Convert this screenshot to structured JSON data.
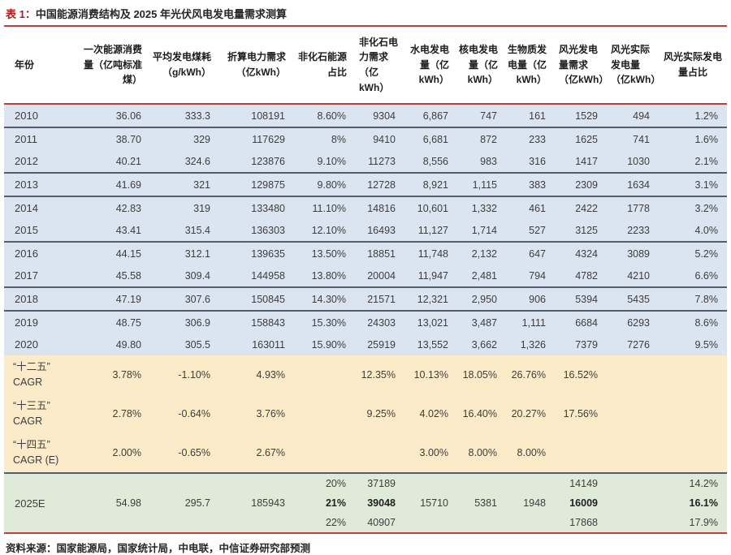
{
  "title": {
    "prefix": "表 1：",
    "text": "中国能源消费结构及 2025 年光伏风电发电量需求测算"
  },
  "colors": {
    "accent_red": "#b8413c",
    "title_red": "#ad1a1f",
    "row_blue": "#dbe5f1",
    "row_tan": "#fcebc8",
    "row_green": "#dfead9",
    "divider_gray": "#525f6b"
  },
  "table": {
    "columns": [
      "年份",
      "一次能源消费量（亿吨标准煤）",
      "平均发电煤耗（g/kWh）",
      "折算电力需求（亿kWh）",
      "非化石能源占比",
      "非化石电力需求（亿kWh）",
      "水电发电量（亿kWh）",
      "核电发电量（亿kWh）",
      "生物质发电量（亿kWh）",
      "风光发电量需求（亿kWh）",
      "风光实际发电量（亿kWh）",
      "风光实际发电量占比"
    ],
    "rows": [
      [
        "2010",
        "36.06",
        "333.3",
        "108191",
        "8.60%",
        "9304",
        "6,867",
        "747",
        "161",
        "1529",
        "494",
        "1.2%"
      ],
      [
        "2011",
        "38.70",
        "329",
        "117629",
        "8%",
        "9410",
        "6,681",
        "872",
        "233",
        "1625",
        "741",
        "1.6%"
      ],
      [
        "2012",
        "40.21",
        "324.6",
        "123876",
        "9.10%",
        "11273",
        "8,556",
        "983",
        "316",
        "1417",
        "1030",
        "2.1%"
      ],
      [
        "2013",
        "41.69",
        "321",
        "129875",
        "9.80%",
        "12728",
        "8,921",
        "1,115",
        "383",
        "2309",
        "1634",
        "3.1%"
      ],
      [
        "2014",
        "42.83",
        "319",
        "133480",
        "11.10%",
        "14816",
        "10,601",
        "1,332",
        "461",
        "2422",
        "1778",
        "3.2%"
      ],
      [
        "2015",
        "43.41",
        "315.4",
        "136303",
        "12.10%",
        "16493",
        "11,127",
        "1,714",
        "527",
        "3125",
        "2233",
        "4.0%"
      ],
      [
        "2016",
        "44.15",
        "312.1",
        "139635",
        "13.50%",
        "18851",
        "11,748",
        "2,132",
        "647",
        "4324",
        "3089",
        "5.2%"
      ],
      [
        "2017",
        "45.58",
        "309.4",
        "144958",
        "13.80%",
        "20004",
        "11,947",
        "2,481",
        "794",
        "4782",
        "4210",
        "6.6%"
      ],
      [
        "2018",
        "47.19",
        "307.6",
        "150845",
        "14.30%",
        "21571",
        "12,321",
        "2,950",
        "906",
        "5394",
        "5435",
        "7.8%"
      ],
      [
        "2019",
        "48.75",
        "306.9",
        "158843",
        "15.30%",
        "24303",
        "13,021",
        "3,487",
        "1,111",
        "6684",
        "6293",
        "8.6%"
      ],
      [
        "2020",
        "49.80",
        "305.5",
        "163011",
        "15.90%",
        "25919",
        "13,552",
        "3,662",
        "1,326",
        "7379",
        "7276",
        "9.5%"
      ]
    ],
    "cagr_rows": [
      {
        "label_lines": [
          "“十二五”",
          "CAGR"
        ],
        "cells": [
          "3.78%",
          "-1.10%",
          "4.93%",
          "",
          "12.35%",
          "10.13%",
          "18.05%",
          "26.76%",
          "16.52%",
          "",
          ""
        ]
      },
      {
        "label_lines": [
          "“十三五”",
          "CAGR"
        ],
        "cells": [
          "2.78%",
          "-0.64%",
          "3.76%",
          "",
          "9.25%",
          "4.02%",
          "16.40%",
          "20.27%",
          "17.56%",
          "",
          ""
        ]
      },
      {
        "label_lines": [
          "“十四五”",
          "CAGR (E)"
        ],
        "cells": [
          "2.00%",
          "-0.65%",
          "2.67%",
          "",
          "",
          "3.00%",
          "8.00%",
          "8.00%",
          "",
          "",
          ""
        ]
      }
    ],
    "forecast": {
      "label": "2025E",
      "primary_energy": "54.98",
      "coal_rate": "295.7",
      "power_demand": "185943",
      "scenarios": [
        {
          "nonfossil_share": "20%",
          "nonfossil_power": "37189",
          "hydro": "",
          "nuclear": "",
          "biomass": "",
          "wind_solar_demand": "14149",
          "wind_solar_actual": "",
          "actual_share": "14.2%"
        },
        {
          "nonfossil_share": "21%",
          "nonfossil_power": "39048",
          "hydro": "15710",
          "nuclear": "5381",
          "biomass": "1948",
          "wind_solar_demand": "16009",
          "wind_solar_actual": "",
          "actual_share": "16.1%"
        },
        {
          "nonfossil_share": "22%",
          "nonfossil_power": "40907",
          "hydro": "",
          "nuclear": "",
          "biomass": "",
          "wind_solar_demand": "17868",
          "wind_solar_actual": "",
          "actual_share": "17.9%"
        }
      ]
    }
  },
  "footer": "资料来源：国家能源局，国家统计局，中电联，中信证券研究部预测"
}
